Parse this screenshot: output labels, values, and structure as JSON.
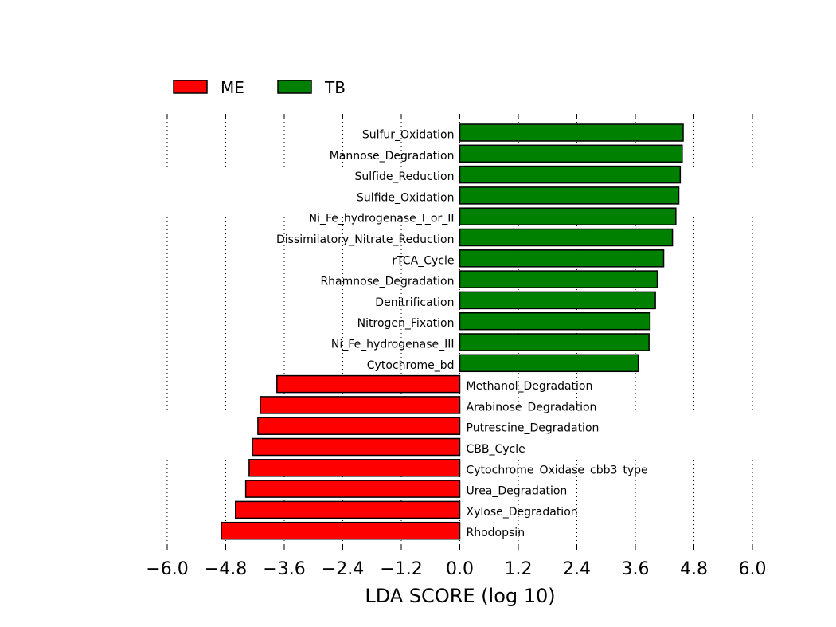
{
  "chart_data": {
    "type": "bar",
    "orientation": "horizontal",
    "xlabel": "LDA SCORE (log 10)",
    "xlim": [
      -6.0,
      6.0
    ],
    "xticks": [
      "−6.0",
      "−4.8",
      "−3.6",
      "−2.4",
      "−1.2",
      "0.0",
      "1.2",
      "2.4",
      "3.6",
      "4.8",
      "6.0"
    ],
    "xtick_values": [
      -6.0,
      -4.8,
      -3.6,
      -2.4,
      -1.2,
      0.0,
      1.2,
      2.4,
      3.6,
      4.8,
      6.0
    ],
    "grid": "vertical dotted",
    "legend": {
      "placement": "top-left",
      "entries": [
        {
          "name": "ME",
          "color": "#ff0000"
        },
        {
          "name": "TB",
          "color": "#008000"
        }
      ]
    },
    "bars": [
      {
        "label": "Sulfur_Oxidation",
        "value": 4.58,
        "group": "TB"
      },
      {
        "label": "Mannose_Degradation",
        "value": 4.56,
        "group": "TB"
      },
      {
        "label": "Sulfide_Reduction",
        "value": 4.52,
        "group": "TB"
      },
      {
        "label": "Sulfide_Oxidation",
        "value": 4.49,
        "group": "TB"
      },
      {
        "label": "Ni_Fe_hydrogenase_I_or_II",
        "value": 4.43,
        "group": "TB"
      },
      {
        "label": "Dissimilatory_Nitrate_Reduction",
        "value": 4.36,
        "group": "TB"
      },
      {
        "label": "rTCA_Cycle",
        "value": 4.18,
        "group": "TB"
      },
      {
        "label": "Rhamnose_Degradation",
        "value": 4.05,
        "group": "TB"
      },
      {
        "label": "Denitrification",
        "value": 4.01,
        "group": "TB"
      },
      {
        "label": "Nitrogen_Fixation",
        "value": 3.9,
        "group": "TB"
      },
      {
        "label": "Ni_Fe_hydrogenase_III",
        "value": 3.88,
        "group": "TB"
      },
      {
        "label": "Cytochrome_bd",
        "value": 3.66,
        "group": "TB"
      },
      {
        "label": "Methanol_Degradation",
        "value": -3.75,
        "group": "ME"
      },
      {
        "label": "Arabinose_Degradation",
        "value": -4.09,
        "group": "ME"
      },
      {
        "label": "Putrescine_Degradation",
        "value": -4.14,
        "group": "ME"
      },
      {
        "label": "CBB_Cycle",
        "value": -4.25,
        "group": "ME"
      },
      {
        "label": "Cytochrome_Oxidase_cbb3_type",
        "value": -4.32,
        "group": "ME"
      },
      {
        "label": "Urea_Degradation",
        "value": -4.39,
        "group": "ME"
      },
      {
        "label": "Xylose_Degradation",
        "value": -4.6,
        "group": "ME"
      },
      {
        "label": "Rhodopsin",
        "value": -4.89,
        "group": "ME"
      }
    ]
  }
}
